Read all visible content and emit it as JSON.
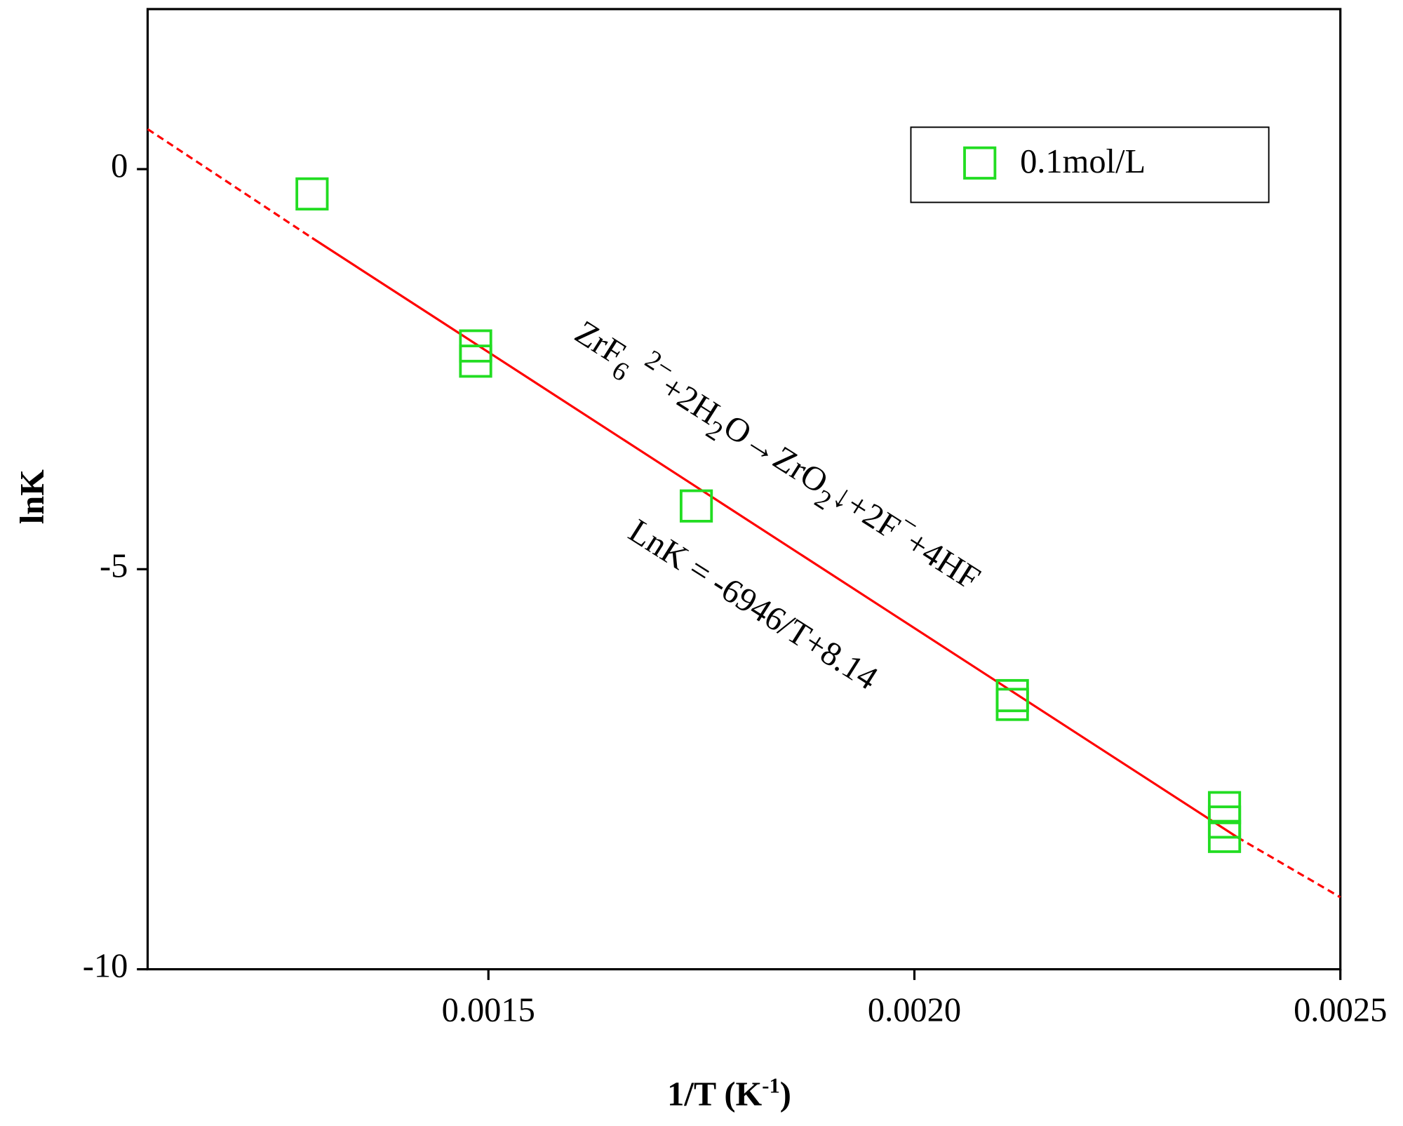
{
  "chart_data": {
    "type": "scatter",
    "x_label_parts": [
      "1/T (K",
      "-1",
      ")"
    ],
    "y_label": "lnK",
    "series": [
      {
        "name": "0.1mol/L",
        "color": "#22dd22",
        "x": [
          0.001293,
          0.001485,
          0.001485,
          0.001744,
          0.002115,
          0.002115,
          0.002364,
          0.002364,
          0.002364
        ],
        "values": [
          -0.31,
          -2.21,
          -2.4,
          -4.21,
          -6.58,
          -6.69,
          -7.98,
          -8.16,
          -8.34
        ]
      }
    ],
    "fit": {
      "color": "#ff0000",
      "solid": {
        "x": [
          0.001293,
          0.002379
        ],
        "y": [
          -0.86,
          -8.35
        ]
      },
      "dashed": [
        {
          "x": [
            0.0011,
            0.001293
          ],
          "y": [
            0.5,
            -0.86
          ]
        },
        {
          "x": [
            0.002379,
            0.0025
          ],
          "y": [
            -8.35,
            -9.1
          ]
        }
      ]
    },
    "annotations": [
      {
        "text_parts": [
          "ZrF",
          "6",
          "2−",
          "+2H",
          "2",
          "O→ZrO",
          "2",
          "↓+2F",
          "−",
          "+4HF"
        ]
      },
      {
        "text": "LnK = -6946/T+8.14"
      }
    ],
    "xlim": [
      0.0011,
      0.0025
    ],
    "xticks": [
      0.0015,
      {
        "value": 0.002,
        "label": "0.0020"
      },
      0.0025
    ],
    "ylim": [
      -10,
      2
    ],
    "yticks": [
      0,
      -5,
      -10
    ],
    "grid": false,
    "legend": "upper right"
  }
}
